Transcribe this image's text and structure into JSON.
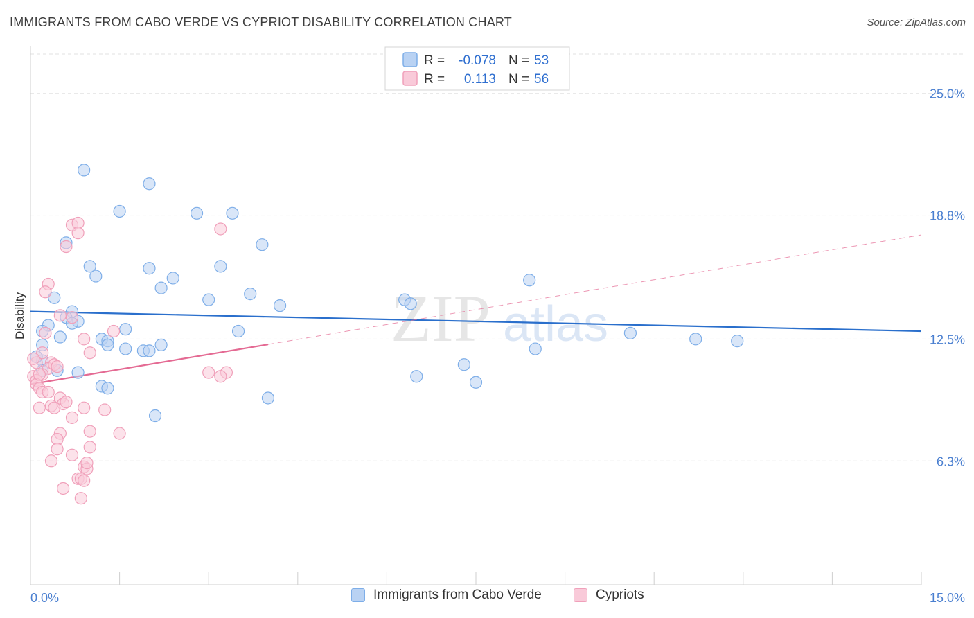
{
  "header": {
    "title": "IMMIGRANTS FROM CABO VERDE VS CYPRIOT DISABILITY CORRELATION CHART",
    "source": "Source: ZipAtlas.com"
  },
  "watermark": {
    "zip": "ZIP",
    "atlas": "atlas"
  },
  "chart_data": {
    "type": "scatter",
    "title": "IMMIGRANTS FROM CABO VERDE VS CYPRIOT DISABILITY CORRELATION CHART",
    "xlabel": "",
    "ylabel": "Disability",
    "xlim": [
      0,
      15
    ],
    "ylim": [
      0,
      27
    ],
    "x_tick_labels": [
      "0.0%",
      "15.0%"
    ],
    "y_ticks": [
      6.3,
      12.5,
      18.8,
      25.0
    ],
    "y_tick_labels": [
      "6.3%",
      "12.5%",
      "18.8%",
      "25.0%"
    ],
    "grid": true,
    "legend_position": "top-center",
    "series": [
      {
        "name": "Immigrants from Cabo Verde",
        "color": "#7eaee8",
        "fill": "#b9d2f3",
        "line_color": "#2a6fcc",
        "R": "-0.078",
        "N": "53",
        "trend": {
          "x": [
            0,
            15
          ],
          "y": [
            13.9,
            12.9
          ],
          "dashed_from": null
        },
        "points": [
          [
            0.9,
            21.1
          ],
          [
            2.0,
            20.4
          ],
          [
            1.5,
            19.0
          ],
          [
            2.8,
            18.9
          ],
          [
            3.4,
            18.9
          ],
          [
            0.6,
            17.4
          ],
          [
            3.9,
            17.3
          ],
          [
            1.0,
            16.2
          ],
          [
            2.0,
            16.1
          ],
          [
            3.2,
            16.2
          ],
          [
            1.1,
            15.7
          ],
          [
            2.4,
            15.6
          ],
          [
            8.4,
            15.5
          ],
          [
            2.2,
            15.1
          ],
          [
            3.7,
            14.8
          ],
          [
            0.4,
            14.6
          ],
          [
            3.0,
            14.5
          ],
          [
            6.3,
            14.5
          ],
          [
            6.4,
            14.3
          ],
          [
            4.2,
            14.2
          ],
          [
            0.7,
            13.9
          ],
          [
            0.6,
            13.6
          ],
          [
            0.8,
            13.4
          ],
          [
            0.7,
            13.3
          ],
          [
            0.3,
            13.2
          ],
          [
            1.6,
            13.0
          ],
          [
            0.2,
            12.9
          ],
          [
            3.5,
            12.9
          ],
          [
            10.1,
            12.8
          ],
          [
            0.5,
            12.6
          ],
          [
            1.2,
            12.5
          ],
          [
            1.3,
            12.4
          ],
          [
            11.2,
            12.5
          ],
          [
            11.9,
            12.4
          ],
          [
            0.2,
            12.2
          ],
          [
            1.3,
            12.2
          ],
          [
            2.2,
            12.2
          ],
          [
            1.6,
            12.0
          ],
          [
            1.9,
            11.9
          ],
          [
            2.0,
            11.9
          ],
          [
            8.5,
            12.0
          ],
          [
            0.2,
            11.4
          ],
          [
            7.3,
            11.2
          ],
          [
            0.2,
            10.9
          ],
          [
            0.45,
            10.9
          ],
          [
            0.8,
            10.8
          ],
          [
            6.5,
            10.6
          ],
          [
            1.2,
            10.1
          ],
          [
            7.5,
            10.3
          ],
          [
            1.3,
            10.0
          ],
          [
            4.0,
            9.5
          ],
          [
            2.1,
            8.6
          ],
          [
            0.1,
            11.6
          ]
        ]
      },
      {
        "name": "Cypriots",
        "color": "#f0a0ba",
        "fill": "#f9cad9",
        "line_color": "#e46a93",
        "R": "0.113",
        "N": "56",
        "trend": {
          "x": [
            0,
            15
          ],
          "y": [
            10.2,
            17.8
          ],
          "dashed_from": 4.0
        },
        "points": [
          [
            0.7,
            18.3
          ],
          [
            0.8,
            18.4
          ],
          [
            0.8,
            17.9
          ],
          [
            3.2,
            18.1
          ],
          [
            0.6,
            17.2
          ],
          [
            0.3,
            15.3
          ],
          [
            0.25,
            14.9
          ],
          [
            0.5,
            13.7
          ],
          [
            0.7,
            13.6
          ],
          [
            0.25,
            12.8
          ],
          [
            1.4,
            12.9
          ],
          [
            0.9,
            12.5
          ],
          [
            0.2,
            11.8
          ],
          [
            1.0,
            11.8
          ],
          [
            0.1,
            11.3
          ],
          [
            0.35,
            11.3
          ],
          [
            0.3,
            11.0
          ],
          [
            0.2,
            10.7
          ],
          [
            0.4,
            11.2
          ],
          [
            0.45,
            11.1
          ],
          [
            3.0,
            10.8
          ],
          [
            3.3,
            10.8
          ],
          [
            3.2,
            10.6
          ],
          [
            0.05,
            10.6
          ],
          [
            0.1,
            10.4
          ],
          [
            0.1,
            10.2
          ],
          [
            0.15,
            10.0
          ],
          [
            0.2,
            9.8
          ],
          [
            0.3,
            9.8
          ],
          [
            0.5,
            9.5
          ],
          [
            0.55,
            9.2
          ],
          [
            0.15,
            9.0
          ],
          [
            0.35,
            9.1
          ],
          [
            0.4,
            9.0
          ],
          [
            0.6,
            9.3
          ],
          [
            0.9,
            9.0
          ],
          [
            1.25,
            8.9
          ],
          [
            0.7,
            8.5
          ],
          [
            1.0,
            7.8
          ],
          [
            1.5,
            7.7
          ],
          [
            0.5,
            7.7
          ],
          [
            0.45,
            7.4
          ],
          [
            1.0,
            7.0
          ],
          [
            0.45,
            6.9
          ],
          [
            0.7,
            6.6
          ],
          [
            0.35,
            6.3
          ],
          [
            0.9,
            6.0
          ],
          [
            0.95,
            5.9
          ],
          [
            0.8,
            5.4
          ],
          [
            0.85,
            5.4
          ],
          [
            0.9,
            5.3
          ],
          [
            0.55,
            4.9
          ],
          [
            0.85,
            4.4
          ],
          [
            0.95,
            6.2
          ],
          [
            0.05,
            11.5
          ],
          [
            0.15,
            10.7
          ]
        ]
      }
    ]
  }
}
